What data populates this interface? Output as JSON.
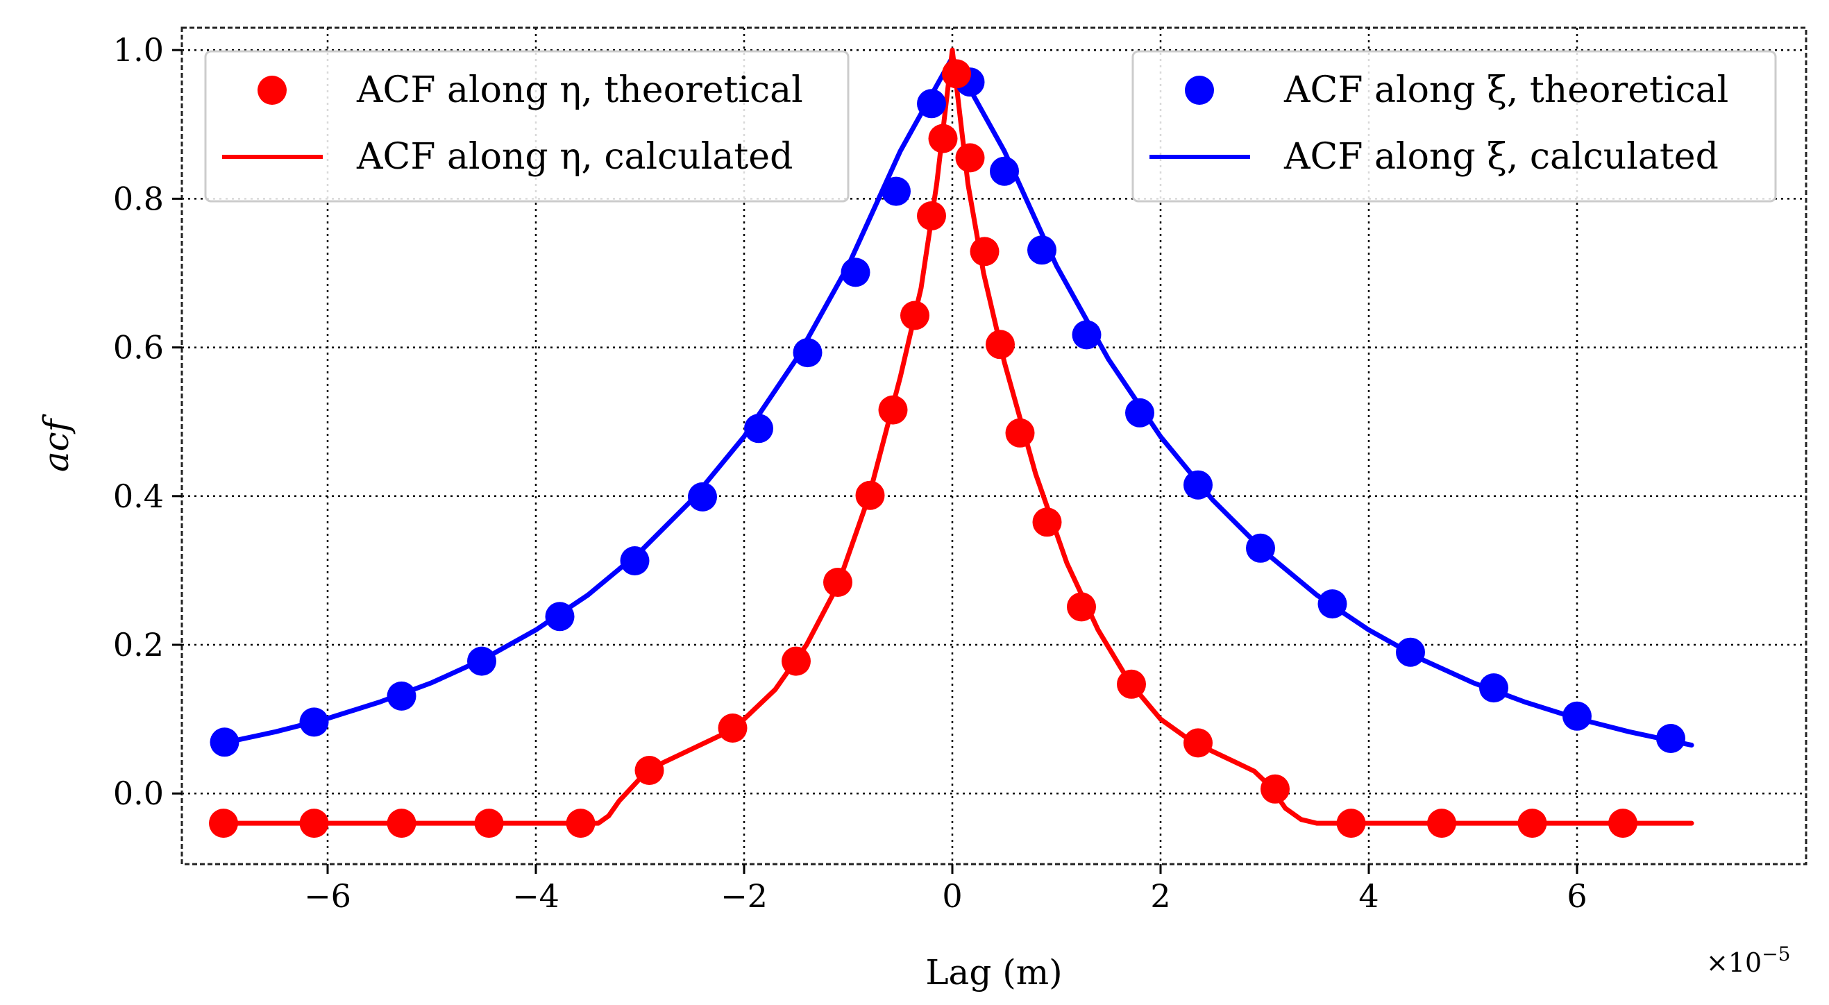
{
  "chart_data": {
    "type": "line",
    "title": "",
    "xlabel": "Lag (m)",
    "ylabel": "acf",
    "x_multiplier": "×10",
    "x_multiplier_exp": "−5",
    "xlim": [
      -7.4,
      8.2
    ],
    "ylim": [
      -0.095,
      1.03
    ],
    "xticks": [
      -6,
      -4,
      -2,
      0,
      2,
      4,
      6
    ],
    "xtick_labels": [
      "−6",
      "−4",
      "−2",
      "0",
      "2",
      "4",
      "6"
    ],
    "yticks": [
      0.0,
      0.2,
      0.4,
      0.6,
      0.8,
      1.0
    ],
    "ytick_labels": [
      "0.0",
      "0.2",
      "0.4",
      "0.6",
      "0.8",
      "1.0"
    ],
    "grid": true,
    "legends": [
      {
        "placement": "top-left",
        "entries": [
          {
            "label": "ACF along η, theoretical",
            "style": "marker",
            "color": "#ff0000"
          },
          {
            "label": "ACF along η, calculated",
            "style": "line",
            "color": "#ff0000"
          }
        ]
      },
      {
        "placement": "top-right",
        "entries": [
          {
            "label": "ACF along ξ, theoretical",
            "style": "marker",
            "color": "#0000ff"
          },
          {
            "label": "ACF along ξ, calculated",
            "style": "line",
            "color": "#0000ff"
          }
        ]
      }
    ],
    "series": [
      {
        "name": "ACF along ξ, theoretical",
        "kind": "scatter",
        "color": "#0000ff",
        "x": [
          -6.99,
          -6.13,
          -5.29,
          -4.52,
          -3.77,
          -2.4,
          -3.05,
          -1.86,
          -1.39,
          -0.93,
          -0.54,
          -0.2,
          0.17,
          0.5,
          0.86,
          1.29,
          1.8,
          2.36,
          2.96,
          3.65,
          4.4,
          5.2,
          6.0,
          6.9
        ],
        "values": [
          0.069,
          0.096,
          0.131,
          0.178,
          0.238,
          0.399,
          0.313,
          0.491,
          0.593,
          0.701,
          0.81,
          0.928,
          0.957,
          0.837,
          0.731,
          0.617,
          0.512,
          0.415,
          0.33,
          0.255,
          0.19,
          0.142,
          0.104,
          0.074
        ]
      },
      {
        "name": "ACF along ξ, calculated",
        "kind": "line",
        "color": "#0000ff",
        "x": [
          -7.0,
          -6.5,
          -6.0,
          -5.5,
          -5.0,
          -4.5,
          -4.0,
          -3.5,
          -3.0,
          -2.5,
          -2.0,
          -1.5,
          -1.0,
          -0.5,
          -0.25,
          0.0,
          0.25,
          0.5,
          1.0,
          1.5,
          2.0,
          2.5,
          3.0,
          3.5,
          4.0,
          4.5,
          5.0,
          5.5,
          6.0,
          6.5,
          7.0,
          7.1
        ],
        "values": [
          0.068,
          0.083,
          0.101,
          0.123,
          0.149,
          0.181,
          0.22,
          0.267,
          0.325,
          0.395,
          0.48,
          0.584,
          0.71,
          0.864,
          0.927,
          0.99,
          0.927,
          0.864,
          0.71,
          0.584,
          0.48,
          0.395,
          0.325,
          0.267,
          0.22,
          0.181,
          0.149,
          0.123,
          0.101,
          0.083,
          0.068,
          0.065
        ]
      },
      {
        "name": "ACF along η, theoretical",
        "kind": "scatter",
        "color": "#ff0000",
        "x": [
          -7.0,
          -6.13,
          -5.29,
          -4.45,
          -3.57,
          -2.91,
          -2.11,
          -1.5,
          -1.1,
          -0.79,
          -0.57,
          -0.36,
          -0.2,
          -0.09,
          0.04,
          0.17,
          0.31,
          0.46,
          0.65,
          0.91,
          1.24,
          1.72,
          2.36,
          3.1,
          3.83,
          4.7,
          5.57,
          6.44
        ],
        "values": [
          -0.04,
          -0.04,
          -0.04,
          -0.04,
          -0.04,
          0.031,
          0.088,
          0.178,
          0.284,
          0.401,
          0.516,
          0.643,
          0.777,
          0.881,
          0.968,
          0.855,
          0.729,
          0.604,
          0.485,
          0.365,
          0.251,
          0.147,
          0.068,
          0.006,
          -0.04,
          -0.04,
          -0.04,
          -0.04
        ]
      },
      {
        "name": "ACF along η, calculated",
        "kind": "line",
        "color": "#ff0000",
        "x": [
          -7.1,
          -3.4,
          -3.3,
          -3.2,
          -3.0,
          -2.8,
          -2.5,
          -2.2,
          -2.0,
          -1.7,
          -1.4,
          -1.1,
          -0.8,
          -0.5,
          -0.3,
          -0.15,
          0.0,
          0.15,
          0.3,
          0.5,
          0.8,
          1.1,
          1.4,
          1.7,
          2.0,
          2.3,
          2.6,
          2.9,
          3.05,
          3.2,
          3.35,
          3.5,
          7.1
        ],
        "values": [
          -0.04,
          -0.04,
          -0.03,
          -0.01,
          0.02,
          0.04,
          0.06,
          0.08,
          0.1,
          0.14,
          0.2,
          0.28,
          0.4,
          0.56,
          0.68,
          0.82,
          1.0,
          0.82,
          0.7,
          0.58,
          0.43,
          0.31,
          0.22,
          0.15,
          0.1,
          0.07,
          0.05,
          0.03,
          0.01,
          -0.02,
          -0.035,
          -0.04,
          -0.04
        ]
      }
    ]
  }
}
